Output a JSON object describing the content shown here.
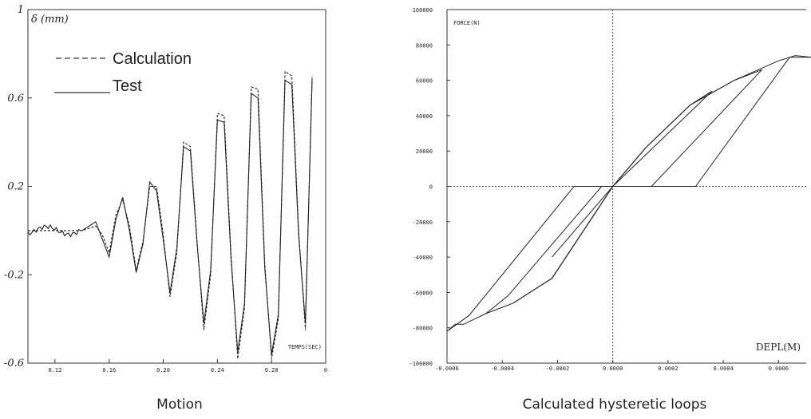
{
  "charts": {
    "motion": {
      "caption": "Motion",
      "ylabel": "δ (mm)",
      "xlabel": "TEMPS(SEC)",
      "y_ticks": [
        "1",
        "0.6",
        "0.2",
        "-0.2",
        "-0.6"
      ],
      "x_ticks": [
        "0.12",
        "0.16",
        "0.20",
        "0.24",
        "0.28",
        "0"
      ],
      "legend": {
        "calc": "Calculation",
        "test": "Test"
      }
    },
    "hysteresis": {
      "caption": "Calculated hysteretic loops",
      "ylabel": "FORCE(N)",
      "xlabel": "DEPL(M)",
      "y_ticks": [
        "100000",
        "80000",
        "60000",
        "40000",
        "20000",
        "0",
        "-20000",
        "-40000",
        "-60000",
        "-80000",
        "-100000"
      ],
      "x_ticks": [
        "-0.0006",
        "-0.0004",
        "-0.0002",
        "0.0000",
        "0.0002",
        "0.0004",
        "0.0006"
      ]
    }
  },
  "chart_data": [
    {
      "type": "line",
      "title": "Motion",
      "xlabel": "TEMPS(SEC)",
      "ylabel": "δ (mm)",
      "xlim": [
        0.1,
        0.32
      ],
      "ylim": [
        -0.6,
        1.0
      ],
      "series": [
        {
          "name": "Calculation",
          "style": "dashed",
          "x": [
            0.1,
            0.14,
            0.15,
            0.155,
            0.16,
            0.165,
            0.17,
            0.175,
            0.18,
            0.185,
            0.19,
            0.195,
            0.2,
            0.205,
            0.21,
            0.215,
            0.22,
            0.225,
            0.23,
            0.235,
            0.24,
            0.245,
            0.25,
            0.255,
            0.26,
            0.265,
            0.27,
            0.275,
            0.28,
            0.285,
            0.29,
            0.295,
            0.3,
            0.305,
            0.31
          ],
          "y": [
            0.0,
            0.0,
            0.02,
            -0.02,
            -0.1,
            0.07,
            0.14,
            0.02,
            -0.18,
            -0.05,
            0.2,
            0.2,
            -0.02,
            -0.3,
            -0.1,
            0.4,
            0.38,
            -0.05,
            -0.45,
            -0.2,
            0.53,
            0.52,
            -0.1,
            -0.58,
            -0.35,
            0.65,
            0.64,
            -0.15,
            -0.58,
            -0.4,
            0.72,
            0.7,
            0.0,
            -0.45,
            0.7
          ]
        },
        {
          "name": "Test",
          "style": "solid",
          "x": [
            0.1,
            0.14,
            0.15,
            0.155,
            0.16,
            0.165,
            0.17,
            0.175,
            0.18,
            0.185,
            0.19,
            0.195,
            0.2,
            0.205,
            0.21,
            0.215,
            0.22,
            0.225,
            0.23,
            0.235,
            0.24,
            0.245,
            0.25,
            0.255,
            0.26,
            0.265,
            0.27,
            0.275,
            0.28,
            0.285,
            0.29,
            0.295,
            0.3,
            0.305,
            0.31
          ],
          "y": [
            0.0,
            0.0,
            0.04,
            -0.04,
            -0.12,
            0.05,
            0.15,
            0.0,
            -0.19,
            -0.06,
            0.22,
            0.18,
            -0.04,
            -0.28,
            -0.08,
            0.38,
            0.36,
            -0.06,
            -0.42,
            -0.18,
            0.5,
            0.49,
            -0.12,
            -0.55,
            -0.33,
            0.62,
            0.6,
            -0.17,
            -0.56,
            -0.38,
            0.68,
            0.66,
            -0.02,
            -0.42,
            0.68
          ]
        }
      ]
    },
    {
      "type": "line",
      "title": "Calculated hysteretic loops",
      "xlabel": "DEPL(M)",
      "ylabel": "FORCE(N)",
      "xlim": [
        -0.0006,
        0.0007
      ],
      "ylim": [
        -100000,
        100000
      ],
      "series": [
        {
          "name": "",
          "x": [
            -0.0006,
            -0.00057,
            -0.00054,
            -0.00046,
            -0.00036,
            -0.00022,
            0.0,
            0.00012,
            0.00028,
            0.00044,
            0.0006,
            0.00066,
            0.00072,
            0.00064,
            0.0003,
            -0.00014,
            -0.00052,
            -0.0006
          ],
          "y": [
            -82000,
            -78000,
            -78000,
            -72000,
            -66000,
            -52000,
            0,
            22000,
            46000,
            60000,
            71000,
            74000,
            73000,
            73000,
            0,
            0,
            -73000,
            -82000
          ]
        },
        {
          "name": "",
          "x": [
            -0.00036,
            -0.00022,
            0.0,
            0.00012,
            0.00028,
            0.00044,
            0.00054,
            0.00014,
            -4e-05,
            -0.00038,
            -0.00046
          ],
          "y": [
            -66000,
            -52000,
            0,
            22000,
            46000,
            60000,
            66000,
            0,
            0,
            -62000,
            -72000
          ]
        },
        {
          "name": "",
          "x": [
            -0.00022,
            0.0,
            0.00012,
            0.00028,
            0.00036,
            0.0,
            -0.00022
          ],
          "y": [
            -52000,
            0,
            22000,
            46000,
            54000,
            0,
            -40000
          ]
        }
      ]
    }
  ]
}
